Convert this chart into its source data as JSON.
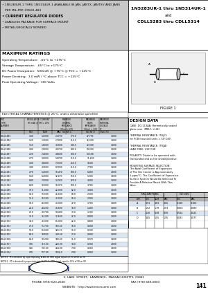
{
  "title_right_line1": "1N5283UR-1 thru 1N5314UR-1",
  "title_right_line2": "and",
  "title_right_line3": "CDLL5283 thru CDLL5314",
  "bullet1": "• 1N5283UR-1 THRU 1N5314UR-1 AVAILABLE IN JAN, JANTX, JANTXV AND JANS",
  "bullet2": "   PER MIL-PRF-19500-483",
  "bullet3": "• CURRENT REGULATOR DIODES",
  "bullet4": "• LEADLESS PACKAGE FOR SURFACE MOUNT",
  "bullet5": "• METALLURGICALLY BONDED",
  "max_ratings_title": "MAXIMUM RATINGS",
  "max_ratings": [
    "Operating Temperature:  -65°C to +175°C",
    "Storage Temperature:  -65°C to +175°C",
    "DC Power Dissipation:  500mW @ +75°C @ TCC = +125°C",
    "Power Derating:  3.0 mW / °C above TCC = +125°C",
    "Peak Operating Voltage:  100 Volts"
  ],
  "elec_char_title": "ELECTRICAL CHARACTERISTICS @ 25°C, unless otherwise specified",
  "table_col1_header": "CRZ\nTYPE\nNUMBER",
  "table_col2_header": "REGULATOR CURRENT\nIR (mA) @ VR = 20V",
  "table_col3_header": "MINIMUM\nDYNAMIC\nIMPEDANCE\n(Ohm) > 20V\nRD (NF 1)",
  "table_col4_header": "MAXIMUM\nSLOPE\nIMPEDANCE\n(Ohm) > 3.0 V\nRD (NF 1)",
  "table_col5_header": "MAXIMUM\nTERMINAL\nVOLTAGE\nVT\n(Volts F2)",
  "table_subheaders": [
    "MIN",
    "NOM",
    "MAX"
  ],
  "table_data": [
    [
      "CDLL5283",
      "1.00",
      "1.1000",
      "2.2700",
      "370.0",
      "27.770",
      "1.800"
    ],
    [
      "CDLL5284",
      "1.20",
      "1.3000",
      "2.7000",
      "710.0",
      "12.000",
      "1.800"
    ],
    [
      "CDLL5285",
      "1.50",
      "1.6000",
      "3.3000",
      "540.0",
      "23.000",
      "1.800"
    ],
    [
      "CDLL5286",
      "1.80",
      "2.0000",
      "4.0700",
      "440.0",
      "19.000",
      "1.800"
    ],
    [
      "CDLL5287",
      "2.20",
      "2.4000",
      "4.8000",
      "380.0",
      "14.500",
      "1.800"
    ],
    [
      "CDLL5288",
      "2.70",
      "3.0000",
      "5.8700",
      "310.0",
      "11.200",
      "1.800"
    ],
    [
      "CDLL5289",
      "3.30",
      "3.6000",
      "7.3300",
      "250.0",
      "9.100",
      "1.800"
    ],
    [
      "CDLL5290",
      "3.90",
      "4.3000",
      "8.7000",
      "210.0",
      "7.700",
      "1.800"
    ],
    [
      "CDLL5291",
      "4.70",
      "5.2000",
      "10.470",
      "180.0",
      "6.400",
      "1.800"
    ],
    [
      "CDLL5292",
      "5.60",
      "6.2000",
      "12.470",
      "150.0",
      "5.300",
      "1.800"
    ],
    [
      "CDLL5293",
      "6.80",
      "7.5000",
      "14.930",
      "120.0",
      "4.400",
      "1.800"
    ],
    [
      "CDLL5294",
      "8.20",
      "9.1000",
      "18.070",
      "100.0",
      "3.700",
      "1.800"
    ],
    [
      "CDLL5295",
      "10.0",
      "11.000",
      "22.000",
      "82.0",
      "3.000",
      "1.800"
    ],
    [
      "CDLL5296",
      "12.0",
      "13.300",
      "26.600",
      "68.0",
      "2.500",
      "1.800"
    ],
    [
      "CDLL5297",
      "15.0",
      "16.500",
      "33.000",
      "56.0",
      "2.000",
      "1.800"
    ],
    [
      "CDLL5298",
      "18.0",
      "20.000",
      "40.000",
      "47.0",
      "1.700",
      "1.800"
    ],
    [
      "CDLL5299",
      "22.0",
      "24.200",
      "48.400",
      "39.0",
      "1.400",
      "1.800"
    ],
    [
      "CDLL5300",
      "27.0",
      "29.700",
      "59.400",
      "33.0",
      "1.100",
      "1.800"
    ],
    [
      "CDLL5301",
      "33.0",
      "36.300",
      "72.600",
      "27.0",
      "0.900",
      "1.800"
    ],
    [
      "CDLL5302",
      "39.0",
      "43.000",
      "86.000",
      "22.0",
      "0.800",
      "1.800"
    ],
    [
      "CDLL5303",
      "47.0",
      "51.700",
      "103.40",
      "18.0",
      "0.600",
      "1.800"
    ],
    [
      "CDLL5304",
      "56.0",
      "61.600",
      "123.20",
      "15.0",
      "0.500",
      "1.800"
    ],
    [
      "CDLL5305",
      "68.0",
      "74.800",
      "149.60",
      "13.0",
      "0.400",
      "1.800"
    ],
    [
      "CDLL5306",
      "82.0",
      "90.200",
      "180.40",
      "11.0",
      "0.370",
      "1.800"
    ],
    [
      "CDLL5307",
      "100.",
      "110.00",
      "220.00",
      "9.10",
      "0.300",
      "1.800"
    ],
    [
      "CDLL5308",
      "120.",
      "132.00",
      "264.00",
      "7.50",
      "0.260",
      "1.800"
    ],
    [
      "CDLL5314",
      "470.",
      "517.00",
      "1034.0",
      "2.00",
      "0.060",
      "1.800"
    ]
  ],
  "note1": "NOTE 1   IR is denoted by superimposing. A 400-Hz RMS signal equal to 10% of VR on VR",
  "note2": "NOTE 2   VT is denoted by superimposing. A 400-Hz RMS signal equal to 10% of VR on VR",
  "figure1_title": "FIGURE 1",
  "design_data_title": "DESIGN DATA",
  "design_data_lines": [
    "CASE: DO-213AA, Hermetically sealed",
    "glass case  (MELF, LL41)",
    " ",
    "THERMAL RESISTANCE: (TθJ-C)",
    "for PCB mounted units = 50°C/W",
    " ",
    "THERMAL RESISTANCE: (TθJ-A)",
    "LEAD FREE: 219°C/W",
    " ",
    "POLARITY: Diode to be operated with",
    "the banded end as the anode/positive.",
    " ",
    "MOUNTING SURFACE SELECTION:",
    "The Axial Coefficient of Expansion",
    "of The Die Carrier is Approximately",
    "5 ppm/°C. The Coefficient of Expansion",
    "Surface System Would Be Selected To",
    "Provide A Relative Match With This",
    "Value."
  ],
  "dim_data": [
    [
      "A",
      "3.51",
      "3.81",
      "4.06",
      "0.138",
      "0.160"
    ],
    [
      "B",
      "1.52",
      "1.78",
      "2.03",
      "0.060",
      "0.080"
    ],
    [
      "C",
      "0.36",
      "0.46",
      "0.56",
      "0.014",
      "0.022"
    ],
    [
      "D",
      "0.85",
      "1.55",
      "1.95",
      "0.033",
      "0.077"
    ]
  ],
  "footer_addr": "6  LAKE  STREET,  LAWRENCE,  MASSACHUSETTS  01841",
  "footer_phone": "PHONE (978) 620-2600",
  "footer_fax": "FAX (978) 689-0803",
  "footer_web": "WEBSITE:  http://www.microsemi.com",
  "footer_page": "141",
  "gray_bg": "#c8c8c8",
  "white_bg": "#ffffff",
  "light_blue": "#dce6f1",
  "med_gray": "#b0b0b0"
}
